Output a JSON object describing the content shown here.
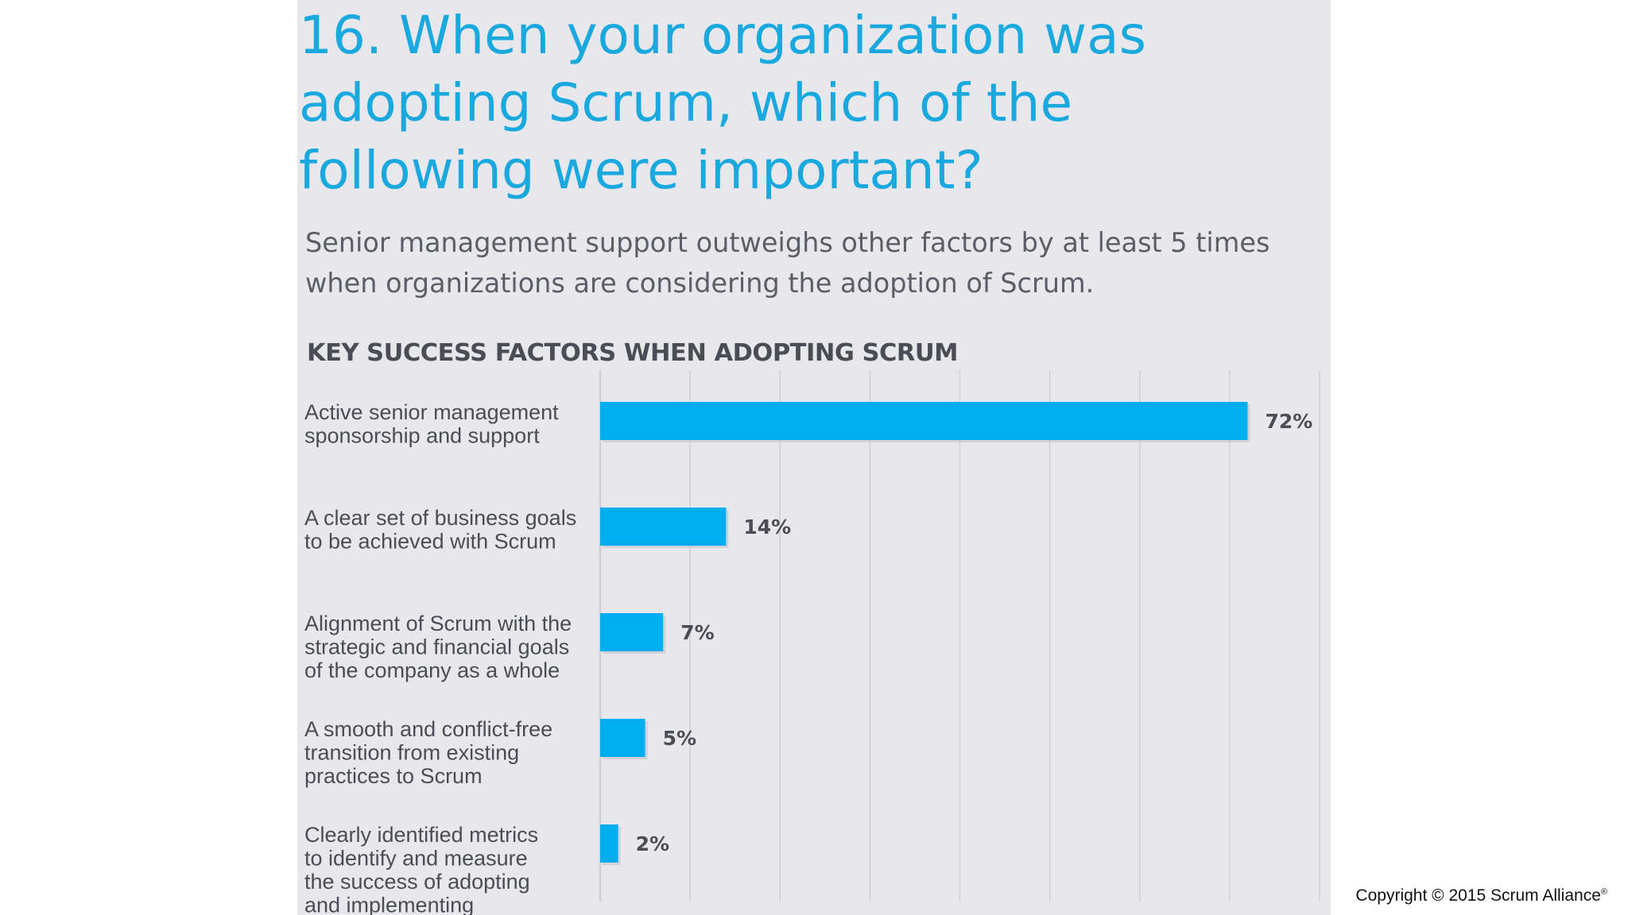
{
  "slide": {
    "question": "16. When your organization was\nadopting Scrum, which of the\nfollowing were important?",
    "subtitle": "Senior management support outweighs other factors by at least 5 times\nwhen organizations are considering the adoption of Scrum.",
    "copyright": "Copyright © 2015 Scrum Alliance",
    "copyright_mark": "®"
  },
  "colors": {
    "bar": "#00aeef",
    "panel": "#e8e8ec",
    "question": "#1aa9df",
    "grid": "#cfcfd4"
  },
  "chart_data": {
    "type": "bar",
    "orientation": "horizontal",
    "title": "KEY SUCCESS FACTORS WHEN ADOPTING SCRUM",
    "categories": [
      [
        "Active senior management",
        "sponsorship and support"
      ],
      [
        "A clear set of business goals",
        "to be achieved with Scrum"
      ],
      [
        "Alignment of Scrum with the",
        "strategic and financial goals",
        "of the company as a whole"
      ],
      [
        "A smooth and conflict-free",
        "transition from existing",
        "practices to Scrum"
      ],
      [
        "Clearly identified metrics",
        "to identify and measure",
        "the success of adopting",
        "and implementing"
      ]
    ],
    "values": [
      72,
      14,
      7,
      5,
      2
    ],
    "value_labels": [
      "72%",
      "14%",
      "7%",
      "5%",
      "2%"
    ],
    "xlim": [
      0,
      80
    ],
    "grid": true,
    "grid_step": 10,
    "xlabel": "",
    "ylabel": ""
  }
}
